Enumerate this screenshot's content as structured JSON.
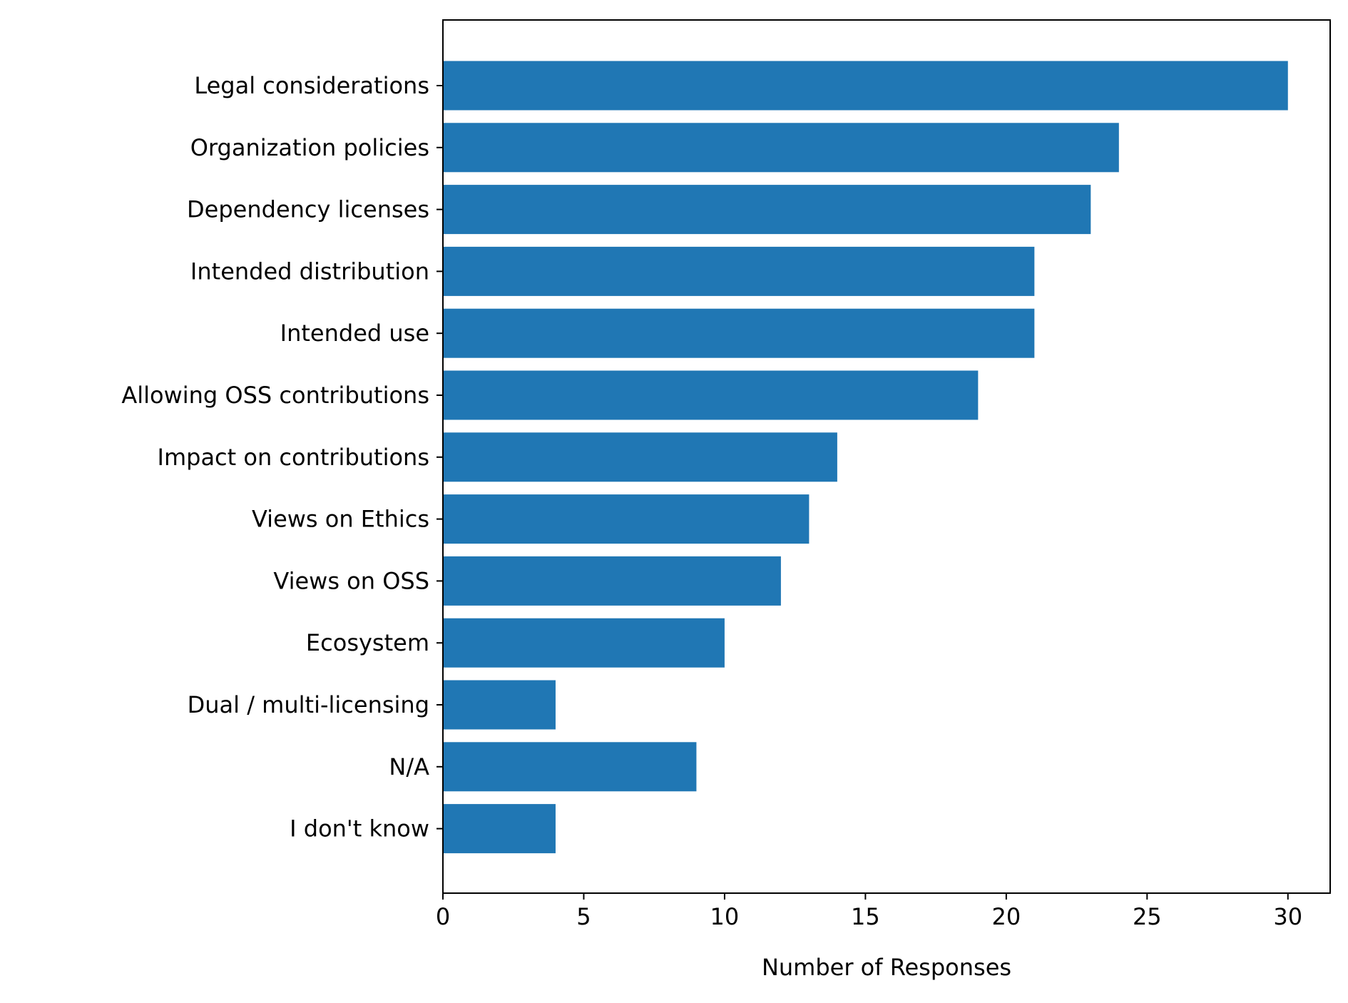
{
  "chart_data": {
    "type": "bar",
    "orientation": "horizontal",
    "title": "",
    "xlabel": "Number of Responses",
    "ylabel": "",
    "xlim": [
      0,
      31.5
    ],
    "xticks": [
      0,
      5,
      10,
      15,
      20,
      25,
      30
    ],
    "grid": false,
    "bar_color": "#2077b4",
    "categories": [
      "Legal considerations",
      "Organization policies",
      "Dependency licenses",
      "Intended distribution",
      "Intended use",
      "Allowing OSS contributions",
      "Impact on contributions",
      "Views on Ethics",
      "Views on OSS",
      "Ecosystem",
      "Dual / multi-licensing",
      "N/A",
      "I don't know"
    ],
    "values": [
      30,
      24,
      23,
      21,
      21,
      19,
      14,
      13,
      12,
      10,
      4,
      9,
      4
    ]
  }
}
